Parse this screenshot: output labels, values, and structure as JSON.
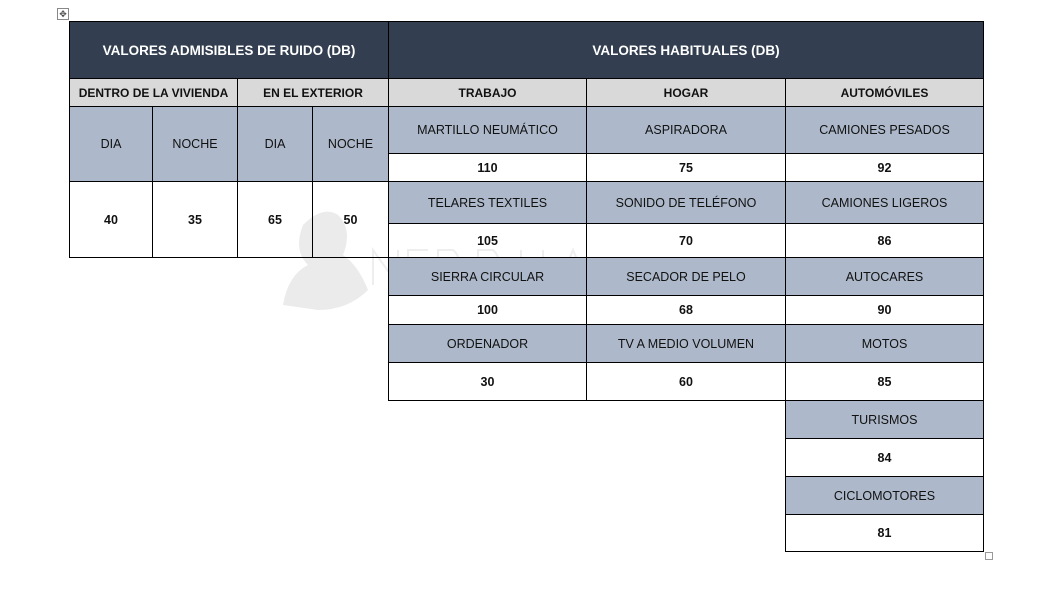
{
  "watermark": "UNIVERSIDAD NEBRIJA",
  "colors": {
    "header_dark": "#333f50",
    "subheader_grey": "#d9d9d9",
    "item_blue": "#adb9ca"
  },
  "left": {
    "title": "VALORES ADMISIBLES DE RUIDO (DB)",
    "groups": [
      "DENTRO DE LA VIVIENDA",
      "EN EL EXTERIOR"
    ],
    "cols": [
      "DIA",
      "NOCHE",
      "DIA",
      "NOCHE"
    ],
    "values": [
      "40",
      "35",
      "65",
      "50"
    ]
  },
  "right": {
    "title": "VALORES HABITUALES (DB)",
    "columns": [
      {
        "label": "TRABAJO",
        "items": [
          {
            "name": "MARTILLO NEUMÁTICO",
            "value": "110"
          },
          {
            "name": "TELARES TEXTILES",
            "value": "105"
          },
          {
            "name": "SIERRA CIRCULAR",
            "value": "100"
          },
          {
            "name": "ORDENADOR",
            "value": "30"
          }
        ]
      },
      {
        "label": "HOGAR",
        "items": [
          {
            "name": "ASPIRADORA",
            "value": "75"
          },
          {
            "name": "SONIDO DE TELÉFONO",
            "value": "70"
          },
          {
            "name": "SECADOR DE PELO",
            "value": "68"
          },
          {
            "name": "TV A MEDIO VOLUMEN",
            "value": "60"
          }
        ]
      },
      {
        "label": "AUTOMÓVILES",
        "items": [
          {
            "name": "CAMIONES PESADOS",
            "value": "92"
          },
          {
            "name": "CAMIONES LIGEROS",
            "value": "86"
          },
          {
            "name": "AUTOCARES",
            "value": "90"
          },
          {
            "name": "MOTOS",
            "value": "85"
          },
          {
            "name": "TURISMOS",
            "value": "84"
          },
          {
            "name": "CICLOMOTORES",
            "value": "81"
          }
        ]
      }
    ]
  }
}
